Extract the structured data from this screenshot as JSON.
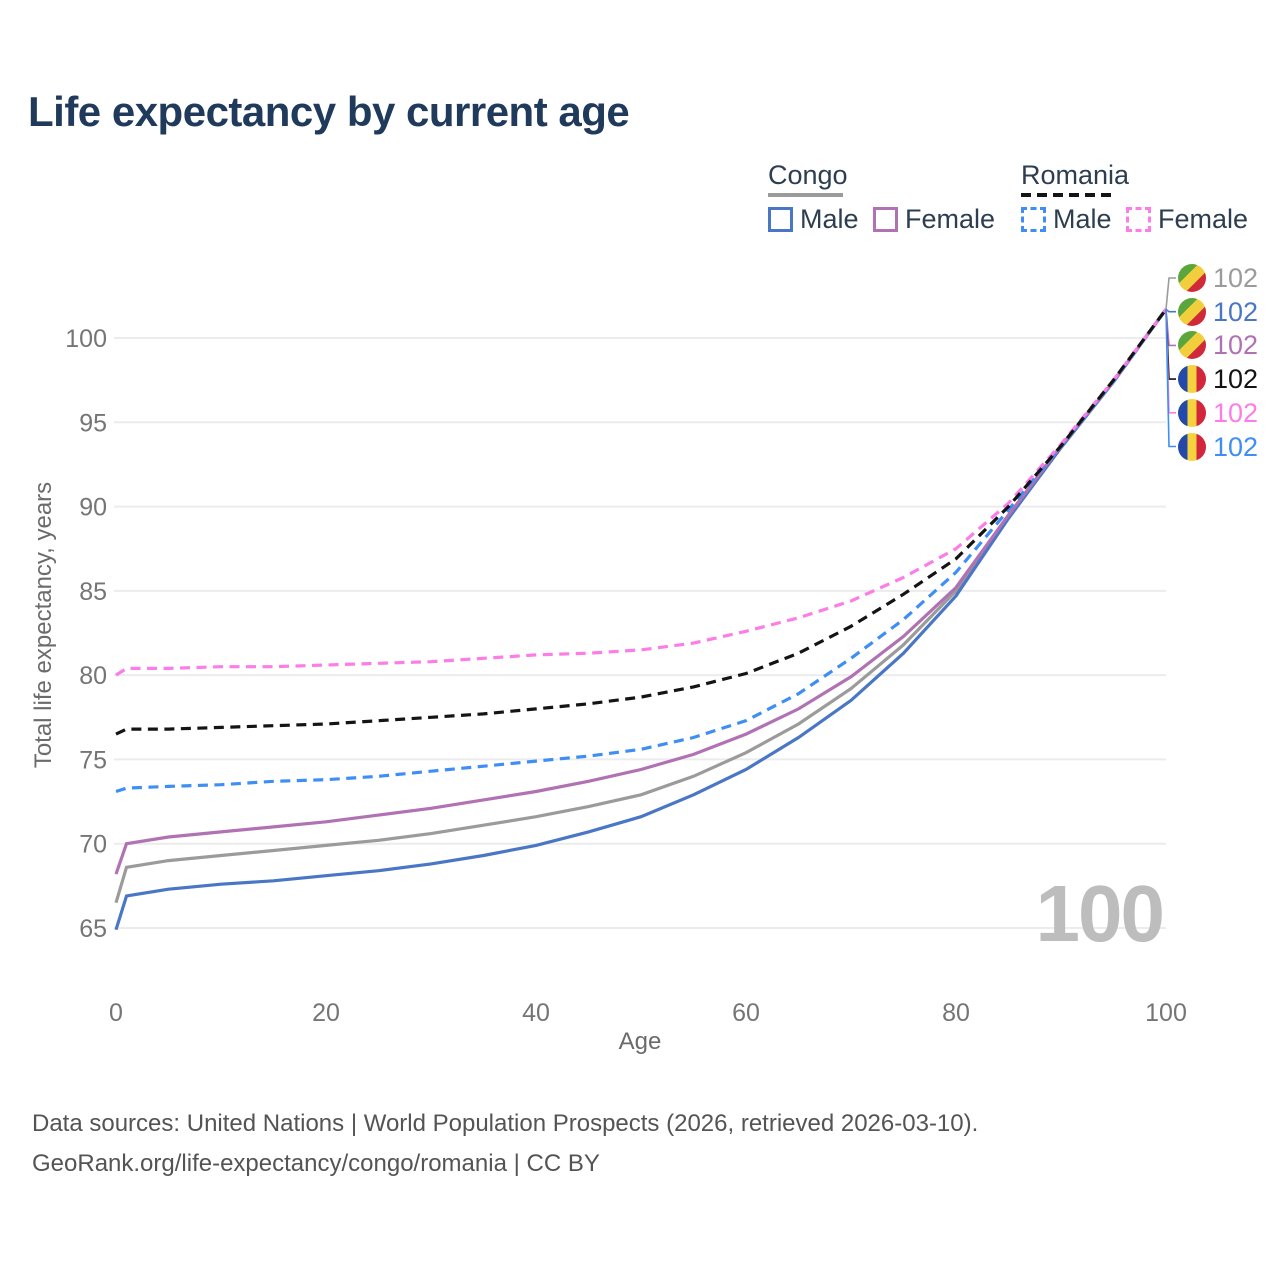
{
  "title": "Life expectancy by current age",
  "watermark": "100",
  "legend": {
    "groups": [
      {
        "label": "Congo",
        "items": [
          {
            "label": "Male",
            "key": "congo_male"
          },
          {
            "label": "Female",
            "key": "congo_female"
          }
        ]
      },
      {
        "label": "Romania",
        "items": [
          {
            "label": "Male",
            "key": "romania_male"
          },
          {
            "label": "Female",
            "key": "romania_female"
          }
        ]
      }
    ]
  },
  "flags": {
    "congo": [
      "#5aa53c",
      "#f0ce3c",
      "#d0293a"
    ],
    "romania": [
      "#2449a8",
      "#f6d33e",
      "#d2263c"
    ]
  },
  "right_labels": [
    {
      "flag": "congo",
      "key": "congo_total",
      "value": "102",
      "color": "#9b9b9b"
    },
    {
      "flag": "congo",
      "key": "congo_male",
      "value": "102",
      "color": "#4a76c6"
    },
    {
      "flag": "congo",
      "key": "congo_female",
      "value": "102",
      "color": "#b172b4"
    },
    {
      "flag": "romania",
      "key": "romania_total",
      "value": "102",
      "color": "#141414"
    },
    {
      "flag": "romania",
      "key": "romania_female",
      "value": "102",
      "color": "#fc7de8"
    },
    {
      "flag": "romania",
      "key": "romania_male",
      "value": "102",
      "color": "#3f8ef5"
    }
  ],
  "chart_data": {
    "type": "line",
    "title": "Life expectancy by current age",
    "xlabel": "Age",
    "ylabel": "Total life expectancy, years",
    "xlim": [
      0,
      100
    ],
    "ylim": [
      64.5,
      102
    ],
    "xticks": [
      0,
      20,
      40,
      60,
      80,
      100
    ],
    "yticks": [
      65,
      70,
      75,
      80,
      85,
      90,
      95,
      100
    ],
    "grid": "horizontal",
    "legend_position": "top-right",
    "x": [
      0,
      1,
      5,
      10,
      15,
      20,
      25,
      30,
      35,
      40,
      45,
      50,
      55,
      60,
      65,
      70,
      75,
      80,
      85,
      90,
      95,
      100
    ],
    "series": [
      {
        "key": "congo_total",
        "group": "Congo",
        "color": "#9b9b9b",
        "dash": "solid",
        "values": [
          66.5,
          68.6,
          69.0,
          69.3,
          69.6,
          69.9,
          70.2,
          70.6,
          71.1,
          71.6,
          72.2,
          72.9,
          74.0,
          75.4,
          77.1,
          79.2,
          81.8,
          85.0,
          89.4,
          93.5,
          97.4,
          101.7
        ]
      },
      {
        "key": "congo_male",
        "group": "Congo",
        "legend_label": "Male",
        "color": "#4a76c6",
        "dash": "solid",
        "values": [
          64.9,
          66.9,
          67.3,
          67.6,
          67.8,
          68.1,
          68.4,
          68.8,
          69.3,
          69.9,
          70.7,
          71.6,
          72.9,
          74.4,
          76.3,
          78.5,
          81.3,
          84.7,
          89.3,
          93.5,
          97.4,
          101.7
        ]
      },
      {
        "key": "congo_female",
        "group": "Congo",
        "legend_label": "Female",
        "color": "#b172b4",
        "dash": "solid",
        "values": [
          68.2,
          70.0,
          70.4,
          70.7,
          71.0,
          71.3,
          71.7,
          72.1,
          72.6,
          73.1,
          73.7,
          74.4,
          75.3,
          76.5,
          78.0,
          79.9,
          82.3,
          85.2,
          89.5,
          93.6,
          97.4,
          101.7
        ]
      },
      {
        "key": "romania_male",
        "group": "Romania",
        "legend_label": "Male",
        "color": "#3f8ef5",
        "dash": "dashed",
        "values": [
          73.1,
          73.3,
          73.4,
          73.5,
          73.7,
          73.8,
          74.0,
          74.3,
          74.6,
          74.9,
          75.2,
          75.6,
          76.3,
          77.3,
          78.9,
          81.0,
          83.3,
          86.1,
          89.8,
          93.6,
          97.4,
          101.7
        ]
      },
      {
        "key": "romania_female",
        "group": "Romania",
        "legend_label": "Female",
        "color": "#fc7de8",
        "dash": "dashed",
        "values": [
          80.0,
          80.4,
          80.4,
          80.5,
          80.5,
          80.6,
          80.7,
          80.8,
          81.0,
          81.2,
          81.3,
          81.5,
          81.9,
          82.6,
          83.4,
          84.4,
          85.8,
          87.5,
          90.2,
          93.7,
          97.5,
          101.7
        ]
      },
      {
        "key": "romania_total",
        "group": "Romania",
        "color": "#141414",
        "dash": "dashed",
        "values": [
          76.5,
          76.8,
          76.8,
          76.9,
          77.0,
          77.1,
          77.3,
          77.5,
          77.7,
          78.0,
          78.3,
          78.7,
          79.3,
          80.1,
          81.3,
          82.9,
          84.8,
          86.9,
          90.0,
          93.6,
          97.5,
          101.7
        ]
      }
    ]
  },
  "footer": {
    "line1": "Data sources: United Nations | World Population Prospects (2026, retrieved 2026-03-10).",
    "line2": "GeoRank.org/life-expectancy/congo/romania | CC BY"
  }
}
